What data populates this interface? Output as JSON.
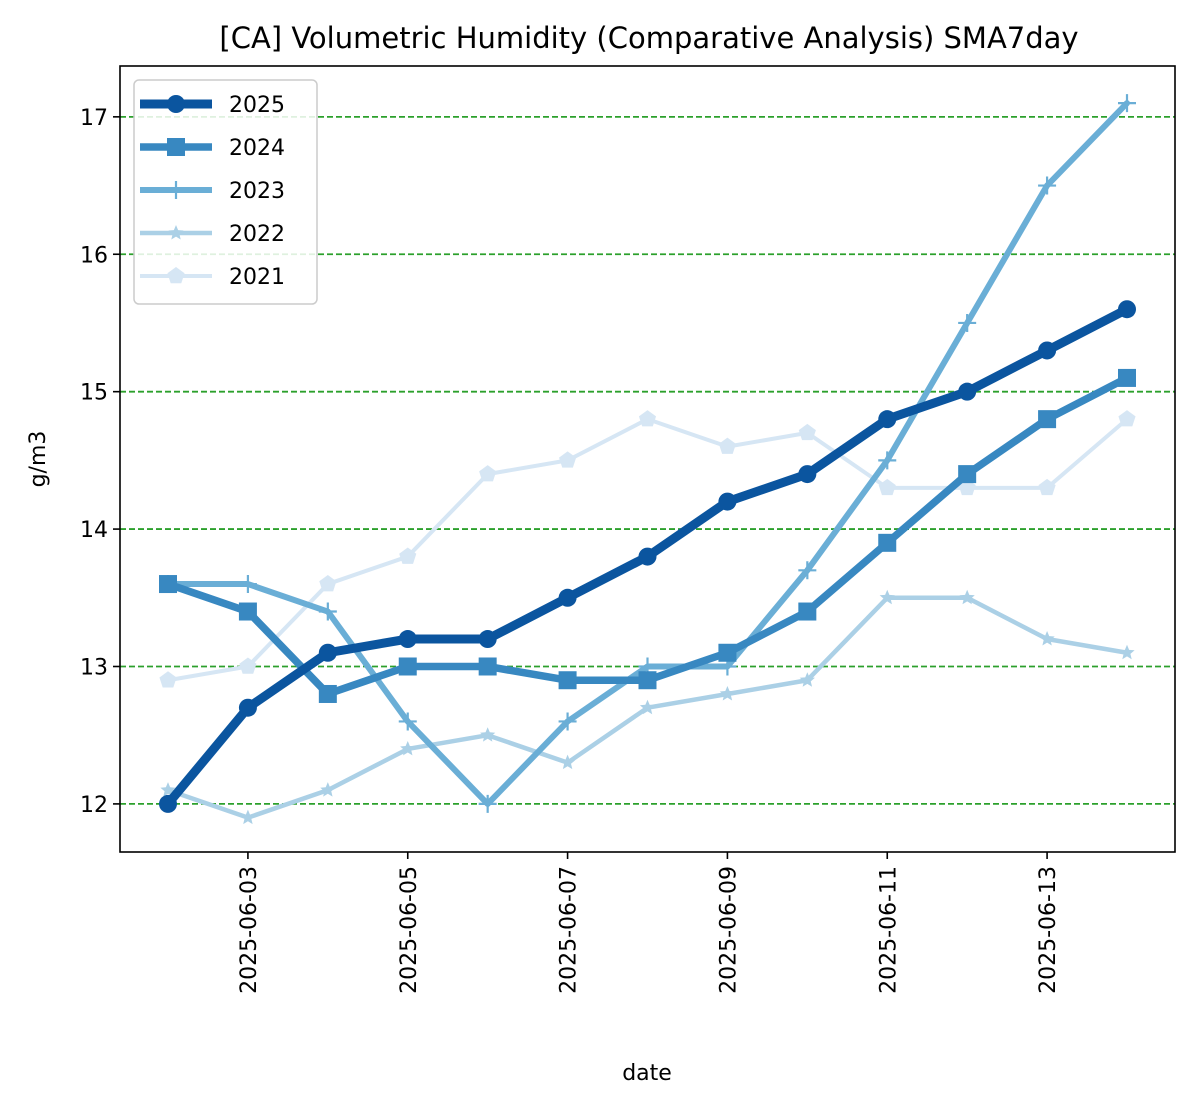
{
  "chart_data": {
    "type": "line",
    "title": "[CA] Volumetric Humidity (Comparative Analysis) SMA7day",
    "xlabel": "date",
    "ylabel": "g/m3",
    "x": [
      "2025-06-02",
      "2025-06-03",
      "2025-06-04",
      "2025-06-05",
      "2025-06-06",
      "2025-06-07",
      "2025-06-08",
      "2025-06-09",
      "2025-06-10",
      "2025-06-11",
      "2025-06-12",
      "2025-06-13",
      "2025-06-14"
    ],
    "x_ticks": [
      "2025-06-03",
      "2025-06-05",
      "2025-06-07",
      "2025-06-09",
      "2025-06-11",
      "2025-06-13"
    ],
    "y_ticks": [
      12,
      13,
      14,
      15,
      16,
      17
    ],
    "ylim": [
      11.65,
      17.37
    ],
    "grid": "horizontal dashed green",
    "grid_color": "#2ca02c",
    "legend_position": "upper-left",
    "series": [
      {
        "name": "2025",
        "color": "#0b559f",
        "marker": "circle",
        "values": [
          12.0,
          12.7,
          13.1,
          13.2,
          13.2,
          13.5,
          13.8,
          14.2,
          14.4,
          14.8,
          15.0,
          15.3,
          15.6
        ]
      },
      {
        "name": "2024",
        "color": "#3888c1",
        "marker": "square",
        "values": [
          13.6,
          13.4,
          12.8,
          13.0,
          13.0,
          12.9,
          12.9,
          13.1,
          13.4,
          13.9,
          14.4,
          14.8,
          15.1
        ]
      },
      {
        "name": "2023",
        "color": "#6aaed6",
        "marker": "plus",
        "values": [
          13.6,
          13.6,
          13.4,
          12.6,
          12.0,
          12.6,
          13.0,
          13.0,
          13.7,
          14.5,
          15.5,
          16.5,
          17.1
        ]
      },
      {
        "name": "2022",
        "color": "#abd0e6",
        "marker": "star",
        "values": [
          12.1,
          11.9,
          12.1,
          12.4,
          12.5,
          12.3,
          12.7,
          12.8,
          12.9,
          13.5,
          13.5,
          13.2,
          13.1
        ]
      },
      {
        "name": "2021",
        "color": "#d6e6f4",
        "marker": "pentagon",
        "values": [
          12.9,
          13.0,
          13.6,
          13.8,
          14.4,
          14.5,
          14.8,
          14.6,
          14.7,
          14.3,
          14.3,
          14.3,
          14.8
        ]
      }
    ]
  }
}
